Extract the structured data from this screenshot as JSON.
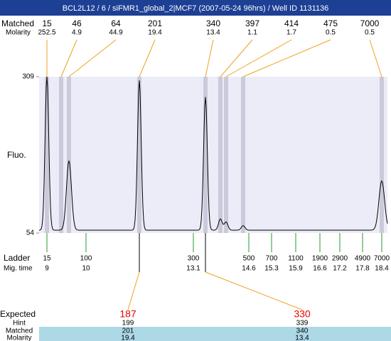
{
  "title": "BCL2L12 / 6 / siFMR1_global_2|MCF7 (2007-05-24 96hrs) / Well ID 1131136",
  "chart_data": {
    "type": "electropherogram",
    "y_label": "Fluo.",
    "ylim": [
      54,
      309
    ],
    "yticks": [
      54,
      309
    ],
    "peaks": {
      "size_label": "Matched",
      "molarity_label": "Molarity",
      "sizes": [
        15,
        46,
        64,
        201,
        340,
        397,
        414,
        475,
        7000
      ],
      "molarity": [
        252.5,
        4.9,
        44.9,
        19.4,
        13.4,
        1.1,
        1.7,
        0.5,
        0.5
      ],
      "fluo": [
        309,
        57,
        172,
        303,
        276,
        77,
        72,
        66,
        139
      ]
    },
    "ladder": {
      "label": "Ladder",
      "time_label": "Mig. time",
      "sizes": [
        15,
        100,
        300,
        500,
        700,
        1100,
        1900,
        2900,
        4900,
        7000
      ],
      "times": [
        9,
        10,
        13.1,
        14.6,
        15.3,
        15.9,
        16.6,
        17.2,
        17.8,
        18.4
      ]
    },
    "expected": {
      "label": "Expected",
      "values": [
        187,
        330
      ],
      "hint_label": "Hint",
      "hint": [
        199,
        339
      ],
      "matched_label": "Matched",
      "matched": [
        201,
        340
      ],
      "molarity_label": "Molarity",
      "molarity": [
        19.4,
        13.4
      ]
    }
  }
}
